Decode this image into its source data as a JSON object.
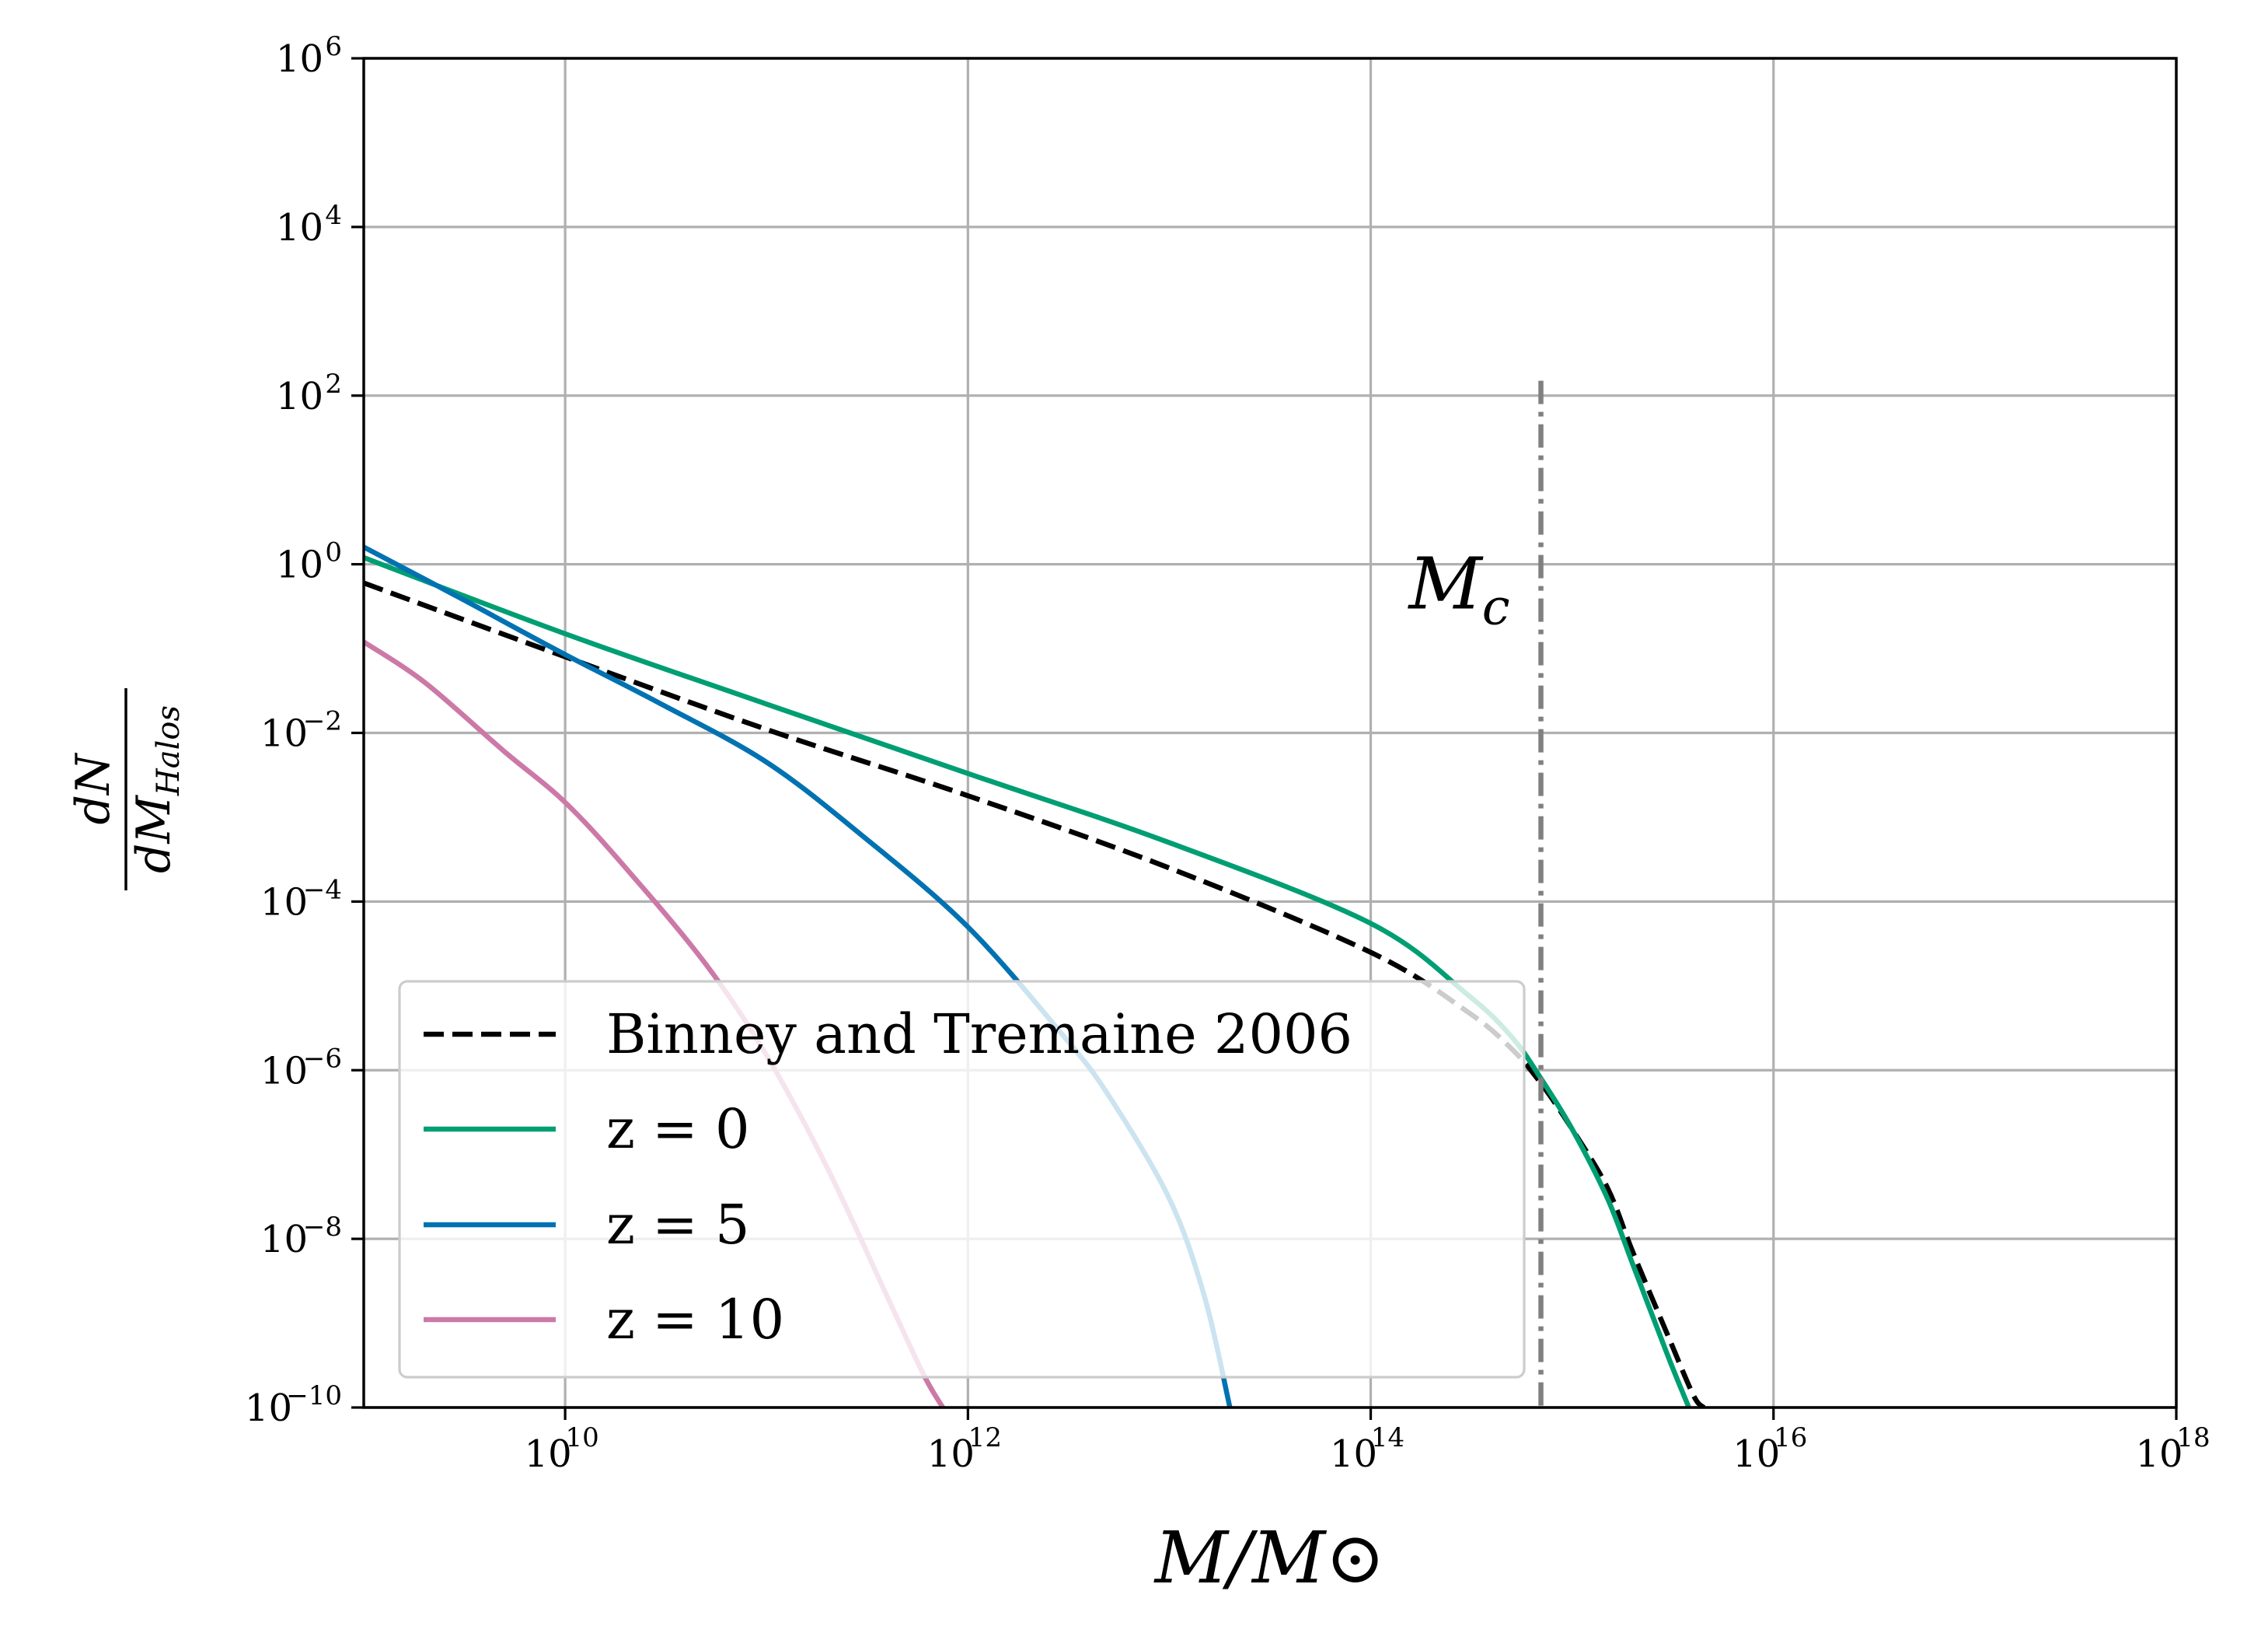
{
  "chart_data": {
    "type": "line",
    "title": "",
    "xlabel": "M/M⊙",
    "ylabel": "dN/dM_Halos",
    "x_scale": "log",
    "y_scale": "log",
    "xlim": [
      1000000000.0,
      1e+18
    ],
    "ylim": [
      1e-10,
      1000000.0
    ],
    "grid": true,
    "legend_position": "lower-left",
    "x_ticks": [
      {
        "mantissa": "10",
        "exponent": "10",
        "value": 10000000000.0
      },
      {
        "mantissa": "10",
        "exponent": "12",
        "value": 1000000000000.0
      },
      {
        "mantissa": "10",
        "exponent": "14",
        "value": 100000000000000.0
      },
      {
        "mantissa": "10",
        "exponent": "16",
        "value": 1e+16
      },
      {
        "mantissa": "10",
        "exponent": "18",
        "value": 1e+18
      }
    ],
    "y_ticks": [
      {
        "mantissa": "10",
        "exponent": "−10",
        "value": 1e-10
      },
      {
        "mantissa": "10",
        "exponent": "−8",
        "value": 1e-08
      },
      {
        "mantissa": "10",
        "exponent": "−6",
        "value": 1e-06
      },
      {
        "mantissa": "10",
        "exponent": "−4",
        "value": 0.0001
      },
      {
        "mantissa": "10",
        "exponent": "−2",
        "value": 0.01
      },
      {
        "mantissa": "10",
        "exponent": "0",
        "value": 1
      },
      {
        "mantissa": "10",
        "exponent": "2",
        "value": 100.0
      },
      {
        "mantissa": "10",
        "exponent": "4",
        "value": 10000.0
      },
      {
        "mantissa": "10",
        "exponent": "6",
        "value": 1000000.0
      }
    ],
    "series": [
      {
        "name": "Binney and Tremaine 2006",
        "color": "#000000",
        "style": "dashed",
        "x": [
          1000000000.0,
          10000000000.0,
          100000000000.0,
          1000000000000.0,
          10000000000000.0,
          100000000000000.0,
          300000000000000.0,
          500000000000000.0,
          700000000000000.0,
          1000000000000000.0,
          1500000000000000.0,
          2000000000000000.0,
          3000000000000000.0,
          4000000000000000.0,
          4500000000000000.0
        ],
        "y": [
          0.6,
          0.08,
          0.011,
          0.0018,
          0.00025,
          2.5e-05,
          5e-06,
          1.8e-06,
          7e-07,
          2e-07,
          4e-08,
          7e-09,
          7e-10,
          1.4e-10,
          1e-10
        ]
      },
      {
        "name": "z = 0",
        "color": "#009e73",
        "style": "solid",
        "x": [
          1000000000.0,
          10000000000.0,
          100000000000.0,
          1000000000000.0,
          10000000000000.0,
          100000000000000.0,
          300000000000000.0,
          500000000000000.0,
          700000000000000.0,
          1000000000000000.0,
          1500000000000000.0,
          2000000000000000.0,
          3000000000000000.0,
          3800000000000000.0
        ],
        "y": [
          1.2,
          0.15,
          0.022,
          0.0033,
          0.0005,
          5.5e-05,
          8e-06,
          2.5e-06,
          8e-07,
          2e-07,
          3e-08,
          5e-09,
          4e-10,
          1e-10
        ]
      },
      {
        "name": "z = 5",
        "color": "#0072b2",
        "style": "solid",
        "x": [
          1000000000.0,
          3000000000.0,
          10000000000.0,
          30000000000.0,
          100000000000.0,
          300000000000.0,
          1000000000000.0,
          3000000000000.0,
          5000000000000.0,
          10000000000000.0,
          15000000000000.0,
          20000000000000.0
        ],
        "y": [
          1.6,
          0.4,
          0.085,
          0.022,
          0.0045,
          0.0006,
          5e-05,
          2.5e-06,
          5e-07,
          3e-08,
          2e-09,
          1e-10
        ]
      },
      {
        "name": "z = 10",
        "color": "#cc79a7",
        "style": "solid",
        "x": [
          1000000000.0,
          2000000000.0,
          5000000000.0,
          10000000000.0,
          20000000000.0,
          50000000000.0,
          100000000000.0,
          200000000000.0,
          400000000000.0,
          600000000000.0,
          750000000000.0
        ],
        "y": [
          0.12,
          0.04,
          0.006,
          0.0015,
          0.00025,
          1.8e-05,
          1.5e-06,
          7e-08,
          2e-09,
          2.5e-10,
          1e-10
        ]
      }
    ],
    "annotations": [
      {
        "type": "vertical-line",
        "x": 700000000000000.0,
        "y_max": 150,
        "style": "dashdot",
        "color": "#808080",
        "label_base": "M",
        "label_sub": "c"
      }
    ]
  }
}
